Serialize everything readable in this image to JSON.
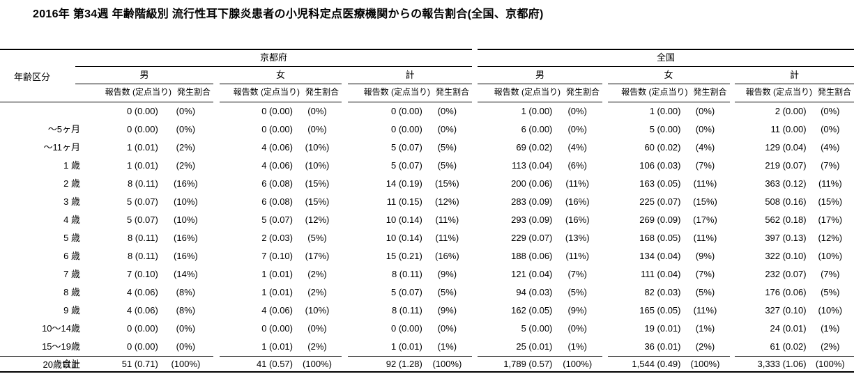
{
  "title": "2016年 第34週 年齢階級別 流行性耳下腺炎患者の小児科定点医療機関からの報告割合(全国、京都府)",
  "table": {
    "age_column_header": "年齢区分",
    "sections": [
      {
        "name": "京都府",
        "groups": [
          {
            "label": "男"
          },
          {
            "label": "女"
          },
          {
            "label": "計"
          }
        ]
      },
      {
        "name": "全国",
        "groups": [
          {
            "label": "男"
          },
          {
            "label": "女"
          },
          {
            "label": "計"
          }
        ]
      }
    ],
    "subheader": {
      "count": "報告数 (定点当り)",
      "ratio": "発生割合"
    },
    "rows": [
      {
        "age": "～5ヶ月",
        "values": [
          {
            "count": "0 (0.00)",
            "ratio": "(0%)"
          },
          {
            "count": "0 (0.00)",
            "ratio": "(0%)"
          },
          {
            "count": "0 (0.00)",
            "ratio": "(0%)"
          },
          {
            "count": "1 (0.00)",
            "ratio": "(0%)"
          },
          {
            "count": "1 (0.00)",
            "ratio": "(0%)"
          },
          {
            "count": "2 (0.00)",
            "ratio": "(0%)"
          }
        ]
      },
      {
        "age": "～11ヶ月",
        "values": [
          {
            "count": "0 (0.00)",
            "ratio": "(0%)"
          },
          {
            "count": "0 (0.00)",
            "ratio": "(0%)"
          },
          {
            "count": "0 (0.00)",
            "ratio": "(0%)"
          },
          {
            "count": "6 (0.00)",
            "ratio": "(0%)"
          },
          {
            "count": "5 (0.00)",
            "ratio": "(0%)"
          },
          {
            "count": "11 (0.00)",
            "ratio": "(0%)"
          }
        ]
      },
      {
        "age": "1 歳",
        "values": [
          {
            "count": "1 (0.01)",
            "ratio": "(2%)"
          },
          {
            "count": "4 (0.06)",
            "ratio": "(10%)"
          },
          {
            "count": "5 (0.07)",
            "ratio": "(5%)"
          },
          {
            "count": "69 (0.02)",
            "ratio": "(4%)"
          },
          {
            "count": "60 (0.02)",
            "ratio": "(4%)"
          },
          {
            "count": "129 (0.04)",
            "ratio": "(4%)"
          }
        ]
      },
      {
        "age": "2 歳",
        "values": [
          {
            "count": "1 (0.01)",
            "ratio": "(2%)"
          },
          {
            "count": "4 (0.06)",
            "ratio": "(10%)"
          },
          {
            "count": "5 (0.07)",
            "ratio": "(5%)"
          },
          {
            "count": "113 (0.04)",
            "ratio": "(6%)"
          },
          {
            "count": "106 (0.03)",
            "ratio": "(7%)"
          },
          {
            "count": "219 (0.07)",
            "ratio": "(7%)"
          }
        ]
      },
      {
        "age": "3 歳",
        "values": [
          {
            "count": "8 (0.11)",
            "ratio": "(16%)"
          },
          {
            "count": "6 (0.08)",
            "ratio": "(15%)"
          },
          {
            "count": "14 (0.19)",
            "ratio": "(15%)"
          },
          {
            "count": "200 (0.06)",
            "ratio": "(11%)"
          },
          {
            "count": "163 (0.05)",
            "ratio": "(11%)"
          },
          {
            "count": "363 (0.12)",
            "ratio": "(11%)"
          }
        ]
      },
      {
        "age": "4 歳",
        "values": [
          {
            "count": "5 (0.07)",
            "ratio": "(10%)"
          },
          {
            "count": "6 (0.08)",
            "ratio": "(15%)"
          },
          {
            "count": "11 (0.15)",
            "ratio": "(12%)"
          },
          {
            "count": "283 (0.09)",
            "ratio": "(16%)"
          },
          {
            "count": "225 (0.07)",
            "ratio": "(15%)"
          },
          {
            "count": "508 (0.16)",
            "ratio": "(15%)"
          }
        ]
      },
      {
        "age": "5 歳",
        "values": [
          {
            "count": "5 (0.07)",
            "ratio": "(10%)"
          },
          {
            "count": "5 (0.07)",
            "ratio": "(12%)"
          },
          {
            "count": "10 (0.14)",
            "ratio": "(11%)"
          },
          {
            "count": "293 (0.09)",
            "ratio": "(16%)"
          },
          {
            "count": "269 (0.09)",
            "ratio": "(17%)"
          },
          {
            "count": "562 (0.18)",
            "ratio": "(17%)"
          }
        ]
      },
      {
        "age": "6 歳",
        "values": [
          {
            "count": "8 (0.11)",
            "ratio": "(16%)"
          },
          {
            "count": "2 (0.03)",
            "ratio": "(5%)"
          },
          {
            "count": "10 (0.14)",
            "ratio": "(11%)"
          },
          {
            "count": "229 (0.07)",
            "ratio": "(13%)"
          },
          {
            "count": "168 (0.05)",
            "ratio": "(11%)"
          },
          {
            "count": "397 (0.13)",
            "ratio": "(12%)"
          }
        ]
      },
      {
        "age": "7 歳",
        "values": [
          {
            "count": "8 (0.11)",
            "ratio": "(16%)"
          },
          {
            "count": "7 (0.10)",
            "ratio": "(17%)"
          },
          {
            "count": "15 (0.21)",
            "ratio": "(16%)"
          },
          {
            "count": "188 (0.06)",
            "ratio": "(11%)"
          },
          {
            "count": "134 (0.04)",
            "ratio": "(9%)"
          },
          {
            "count": "322 (0.10)",
            "ratio": "(10%)"
          }
        ]
      },
      {
        "age": "8 歳",
        "values": [
          {
            "count": "7 (0.10)",
            "ratio": "(14%)"
          },
          {
            "count": "1 (0.01)",
            "ratio": "(2%)"
          },
          {
            "count": "8 (0.11)",
            "ratio": "(9%)"
          },
          {
            "count": "121 (0.04)",
            "ratio": "(7%)"
          },
          {
            "count": "111 (0.04)",
            "ratio": "(7%)"
          },
          {
            "count": "232 (0.07)",
            "ratio": "(7%)"
          }
        ]
      },
      {
        "age": "9 歳",
        "values": [
          {
            "count": "4 (0.06)",
            "ratio": "(8%)"
          },
          {
            "count": "1 (0.01)",
            "ratio": "(2%)"
          },
          {
            "count": "5 (0.07)",
            "ratio": "(5%)"
          },
          {
            "count": "94 (0.03)",
            "ratio": "(5%)"
          },
          {
            "count": "82 (0.03)",
            "ratio": "(5%)"
          },
          {
            "count": "176 (0.06)",
            "ratio": "(5%)"
          }
        ]
      },
      {
        "age": "10～14歳",
        "values": [
          {
            "count": "4 (0.06)",
            "ratio": "(8%)"
          },
          {
            "count": "4 (0.06)",
            "ratio": "(10%)"
          },
          {
            "count": "8 (0.11)",
            "ratio": "(9%)"
          },
          {
            "count": "162 (0.05)",
            "ratio": "(9%)"
          },
          {
            "count": "165 (0.05)",
            "ratio": "(11%)"
          },
          {
            "count": "327 (0.10)",
            "ratio": "(10%)"
          }
        ]
      },
      {
        "age": "15～19歳",
        "values": [
          {
            "count": "0 (0.00)",
            "ratio": "(0%)"
          },
          {
            "count": "0 (0.00)",
            "ratio": "(0%)"
          },
          {
            "count": "0 (0.00)",
            "ratio": "(0%)"
          },
          {
            "count": "5 (0.00)",
            "ratio": "(0%)"
          },
          {
            "count": "19 (0.01)",
            "ratio": "(1%)"
          },
          {
            "count": "24 (0.01)",
            "ratio": "(1%)"
          }
        ]
      },
      {
        "age": "20歳以上",
        "values": [
          {
            "count": "0 (0.00)",
            "ratio": "(0%)"
          },
          {
            "count": "1 (0.01)",
            "ratio": "(2%)"
          },
          {
            "count": "1 (0.01)",
            "ratio": "(1%)"
          },
          {
            "count": "25 (0.01)",
            "ratio": "(1%)"
          },
          {
            "count": "36 (0.01)",
            "ratio": "(2%)"
          },
          {
            "count": "61 (0.02)",
            "ratio": "(2%)"
          }
        ]
      }
    ],
    "total_row": {
      "age": "合計",
      "values": [
        {
          "count": "51 (0.71)",
          "ratio": "(100%)"
        },
        {
          "count": "41 (0.57)",
          "ratio": "(100%)"
        },
        {
          "count": "92 (1.28)",
          "ratio": "(100%)"
        },
        {
          "count": "1,789 (0.57)",
          "ratio": "(100%)"
        },
        {
          "count": "1,544 (0.49)",
          "ratio": "(100%)"
        },
        {
          "count": "3,333 (1.06)",
          "ratio": "(100%)"
        }
      ]
    }
  }
}
